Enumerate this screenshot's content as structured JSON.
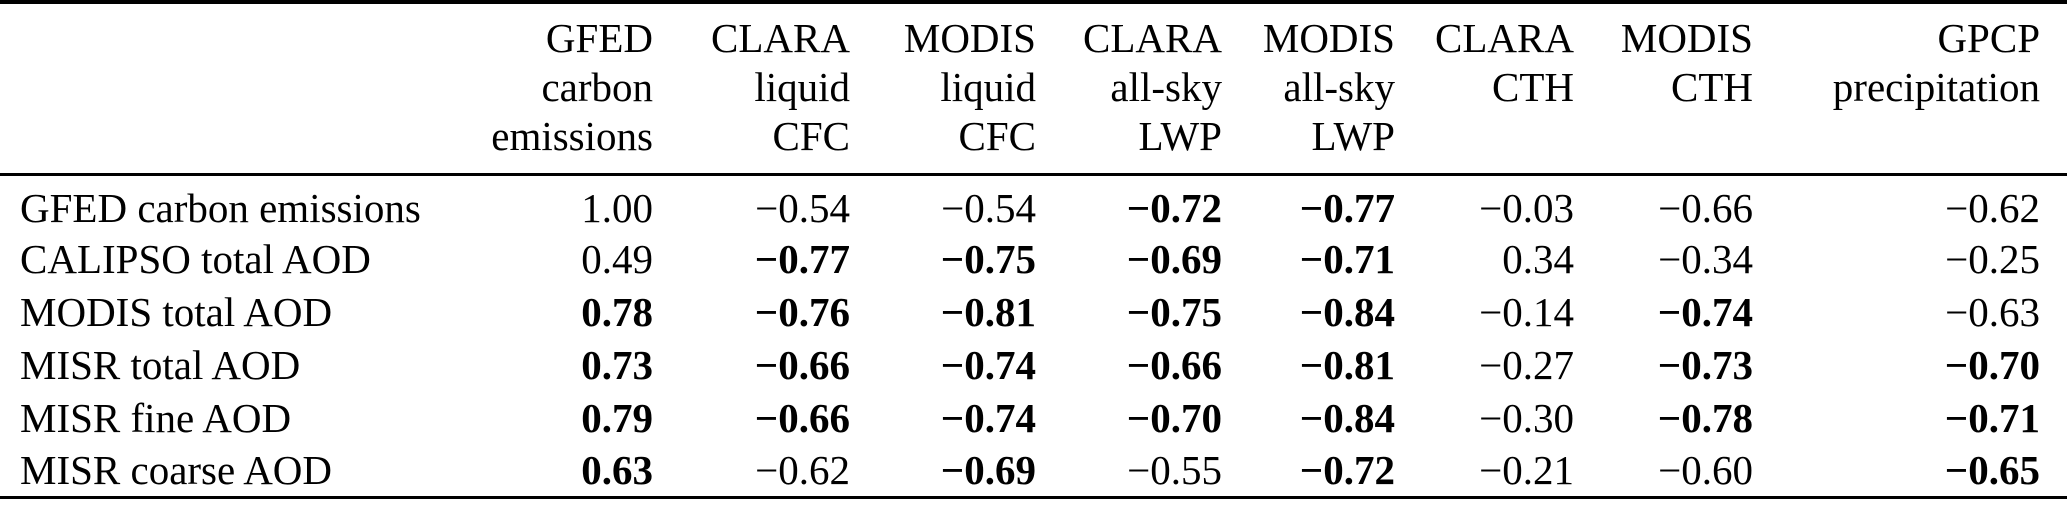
{
  "colors": {
    "background": "#ffffff",
    "text": "#000000",
    "rule": "#000000"
  },
  "table": {
    "headers": [
      "",
      "GFED\ncarbon\nemissions",
      "CLARA\nliquid\nCFC",
      "MODIS\nliquid\nCFC",
      "CLARA\nall-sky\nLWP",
      "MODIS\nall-sky\nLWP",
      "CLARA\nCTH",
      "MODIS\nCTH",
      "GPCP\nprecipitation"
    ],
    "rows": [
      {
        "label": "GFED carbon emissions",
        "cells": [
          {
            "v": "1.00",
            "bold": false
          },
          {
            "v": "−0.54",
            "bold": false
          },
          {
            "v": "−0.54",
            "bold": false
          },
          {
            "v": "−0.72",
            "bold": true
          },
          {
            "v": "−0.77",
            "bold": true
          },
          {
            "v": "−0.03",
            "bold": false
          },
          {
            "v": "−0.66",
            "bold": false
          },
          {
            "v": "−0.62",
            "bold": false
          }
        ]
      },
      {
        "label": "CALIPSO total AOD",
        "cells": [
          {
            "v": "0.49",
            "bold": false
          },
          {
            "v": "−0.77",
            "bold": true
          },
          {
            "v": "−0.75",
            "bold": true
          },
          {
            "v": "−0.69",
            "bold": true
          },
          {
            "v": "−0.71",
            "bold": true
          },
          {
            "v": "0.34",
            "bold": false
          },
          {
            "v": "−0.34",
            "bold": false
          },
          {
            "v": "−0.25",
            "bold": false
          }
        ]
      },
      {
        "label": "MODIS total AOD",
        "cells": [
          {
            "v": "0.78",
            "bold": true
          },
          {
            "v": "−0.76",
            "bold": true
          },
          {
            "v": "−0.81",
            "bold": true
          },
          {
            "v": "−0.75",
            "bold": true
          },
          {
            "v": "−0.84",
            "bold": true
          },
          {
            "v": "−0.14",
            "bold": false
          },
          {
            "v": "−0.74",
            "bold": true
          },
          {
            "v": "−0.63",
            "bold": false
          }
        ]
      },
      {
        "label": "MISR total AOD",
        "cells": [
          {
            "v": "0.73",
            "bold": true
          },
          {
            "v": "−0.66",
            "bold": true
          },
          {
            "v": "−0.74",
            "bold": true
          },
          {
            "v": "−0.66",
            "bold": true
          },
          {
            "v": "−0.81",
            "bold": true
          },
          {
            "v": "−0.27",
            "bold": false
          },
          {
            "v": "−0.73",
            "bold": true
          },
          {
            "v": "−0.70",
            "bold": true
          }
        ]
      },
      {
        "label": "MISR fine AOD",
        "cells": [
          {
            "v": "0.79",
            "bold": true
          },
          {
            "v": "−0.66",
            "bold": true
          },
          {
            "v": "−0.74",
            "bold": true
          },
          {
            "v": "−0.70",
            "bold": true
          },
          {
            "v": "−0.84",
            "bold": true
          },
          {
            "v": "−0.30",
            "bold": false
          },
          {
            "v": "−0.78",
            "bold": true
          },
          {
            "v": "−0.71",
            "bold": true
          }
        ]
      },
      {
        "label": "MISR coarse AOD",
        "cells": [
          {
            "v": "0.63",
            "bold": true
          },
          {
            "v": "−0.62",
            "bold": false
          },
          {
            "v": "−0.69",
            "bold": true
          },
          {
            "v": "−0.55",
            "bold": false
          },
          {
            "v": "−0.72",
            "bold": true
          },
          {
            "v": "−0.21",
            "bold": false
          },
          {
            "v": "−0.60",
            "bold": false
          },
          {
            "v": "−0.65",
            "bold": true
          }
        ]
      }
    ]
  },
  "chart_data": {
    "type": "table",
    "title": "",
    "columns": [
      "GFED carbon emissions",
      "CLARA liquid CFC",
      "MODIS liquid CFC",
      "CLARA all-sky LWP",
      "MODIS all-sky LWP",
      "CLARA CTH",
      "MODIS CTH",
      "GPCP precipitation"
    ],
    "row_labels": [
      "GFED carbon emissions",
      "CALIPSO total AOD",
      "MODIS total AOD",
      "MISR total AOD",
      "MISR fine AOD",
      "MISR coarse AOD"
    ],
    "values": [
      [
        1.0,
        -0.54,
        -0.54,
        -0.72,
        -0.77,
        -0.03,
        -0.66,
        -0.62
      ],
      [
        0.49,
        -0.77,
        -0.75,
        -0.69,
        -0.71,
        0.34,
        -0.34,
        -0.25
      ],
      [
        0.78,
        -0.76,
        -0.81,
        -0.75,
        -0.84,
        -0.14,
        -0.74,
        -0.63
      ],
      [
        0.73,
        -0.66,
        -0.74,
        -0.66,
        -0.81,
        -0.27,
        -0.73,
        -0.7
      ],
      [
        0.79,
        -0.66,
        -0.74,
        -0.7,
        -0.84,
        -0.3,
        -0.78,
        -0.71
      ],
      [
        0.63,
        -0.62,
        -0.69,
        -0.55,
        -0.72,
        -0.21,
        -0.6,
        -0.65
      ]
    ]
  }
}
